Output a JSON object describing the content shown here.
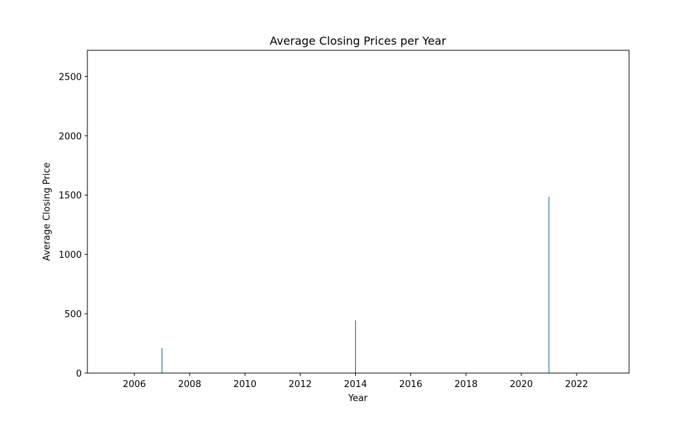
{
  "chart_data": {
    "type": "bar",
    "title": "Average Closing Prices per Year",
    "xlabel": "Year",
    "ylabel": "Average Closing Price",
    "xlim": [
      2004.3,
      2023.9
    ],
    "ylim": [
      0,
      2720
    ],
    "xticks": [
      2006,
      2008,
      2010,
      2012,
      2014,
      2016,
      2018,
      2020,
      2022
    ],
    "yticks": [
      0,
      500,
      1000,
      1500,
      2000,
      2500
    ],
    "grid": false,
    "bar_color": "#1f77b4",
    "x": [
      2005,
      2006,
      2007,
      2008,
      2009,
      2010,
      2011,
      2012,
      2013,
      2014,
      2015,
      2016,
      2017,
      2018,
      2019,
      2020,
      2021,
      2022,
      2023
    ],
    "values": [
      0,
      0,
      210,
      0,
      0,
      0,
      0,
      0,
      0,
      445,
      0,
      0,
      0,
      0,
      0,
      0,
      1485,
      0,
      0
    ]
  }
}
